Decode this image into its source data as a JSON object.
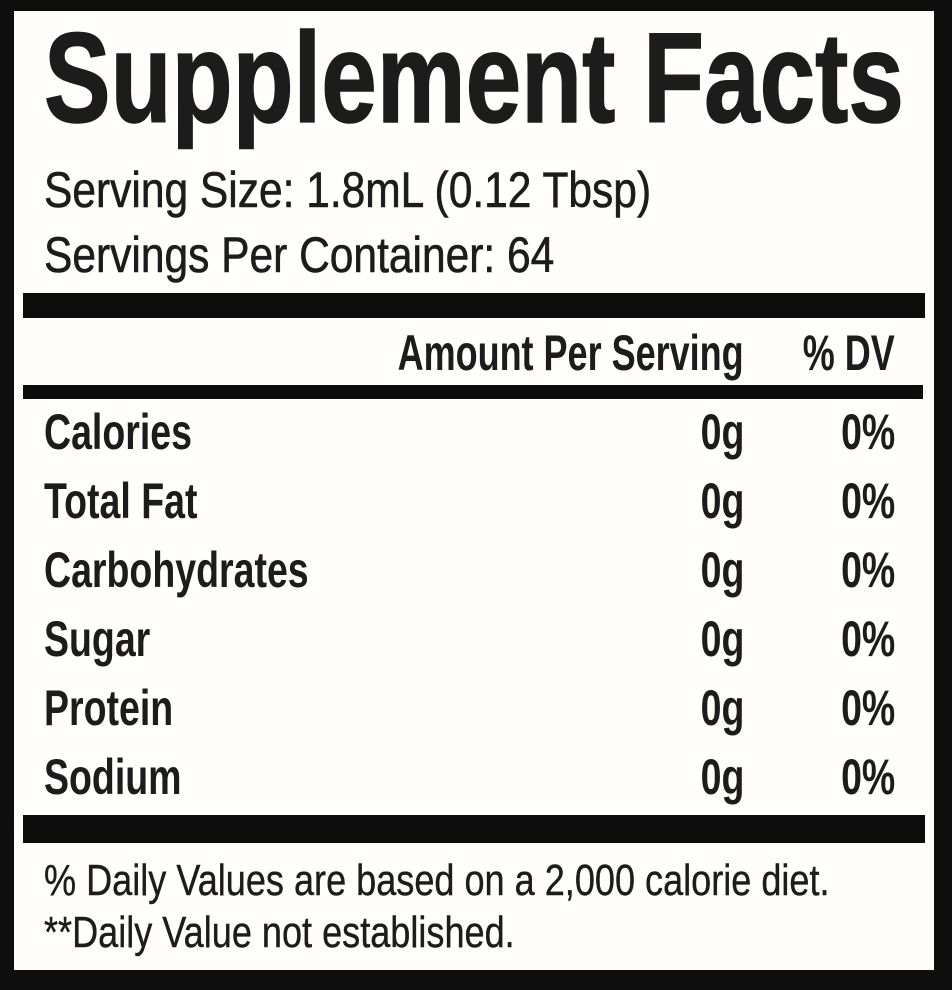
{
  "label": {
    "title": "Supplement Facts",
    "serving_size_line": "Serving Size: 1.8mL (0.12 Tbsp)",
    "servings_per_container_line": "Servings Per Container: 64",
    "columns": {
      "amount_header": "Amount Per Serving",
      "dv_header": "% DV"
    },
    "rows": [
      {
        "name": "Calories",
        "amount": "0g",
        "dv": "0%"
      },
      {
        "name": "Total Fat",
        "amount": "0g",
        "dv": "0%"
      },
      {
        "name": "Carbohydrates",
        "amount": "0g",
        "dv": "0%"
      },
      {
        "name": "Sugar",
        "amount": "0g",
        "dv": "0%"
      },
      {
        "name": "Protein",
        "amount": "0g",
        "dv": "0%"
      },
      {
        "name": "Sodium",
        "amount": "0g",
        "dv": "0%"
      }
    ],
    "footnotes": [
      "% Daily Values are based on a 2,000 calorie diet.",
      "**Daily Value not established."
    ],
    "colors": {
      "ink": "#1c1c1c",
      "bar": "#0c0c0c",
      "card_background": "#fffefa",
      "frame_background": "#0e0e0e"
    }
  }
}
